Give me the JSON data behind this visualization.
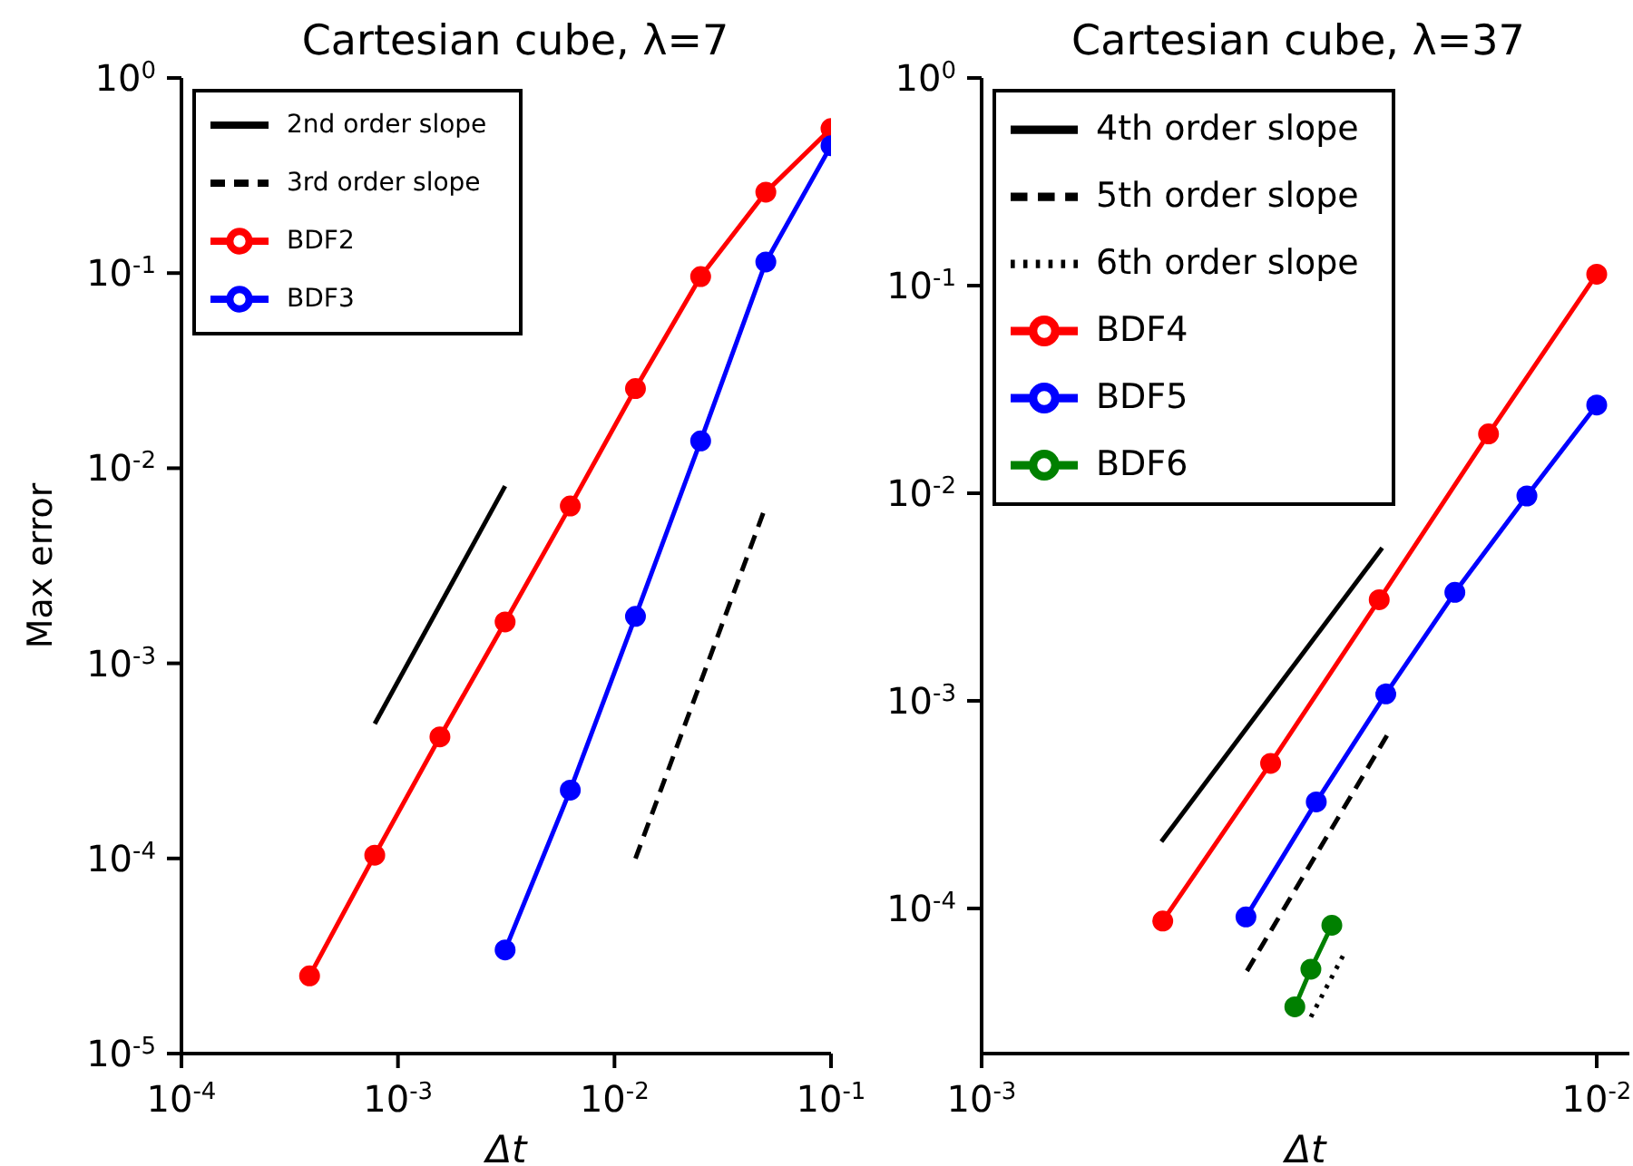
{
  "chart_data": [
    {
      "type": "line",
      "title": "Cartesian cube, λ=7",
      "xlabel": "Δt",
      "ylabel": "Max error",
      "log": "xy",
      "grid": false,
      "legend": "top left",
      "marker": "circle",
      "line_style": "solid",
      "xlim": [
        0.0001,
        0.1
      ],
      "xticks": [
        {
          "value": 0.0001,
          "label": "10$^{-4}$"
        },
        {
          "value": 0.001,
          "label": "10$^{-3}$"
        },
        {
          "value": 0.01,
          "label": "10$^{-2}$"
        },
        {
          "value": 0.1,
          "label": "10$^{-1}$"
        }
      ],
      "ylim": [
        1e-05,
        1
      ],
      "yticks": [
        {
          "value": 1e-05,
          "label": "10$^{-5}$"
        },
        {
          "value": 0.0001,
          "label": "10$^{-4}$"
        },
        {
          "value": 0.001,
          "label": "10$^{-3}$"
        },
        {
          "value": 0.01,
          "label": "10$^{-2}$"
        },
        {
          "value": 0.1,
          "label": "10$^{-1}$"
        },
        {
          "value": 1,
          "label": "10$^{0}$"
        }
      ],
      "series": [
        {
          "name": "BDF2",
          "color": "#ff0000",
          "x": [
            0.000390625,
            0.00078125,
            0.0015625,
            0.003125,
            0.00625,
            0.0125,
            0.025,
            0.05,
            0.1
          ],
          "values": [
            2.5e-05,
            0.000104,
            0.00042,
            0.00163,
            0.0064,
            0.0256,
            0.096,
            0.26,
            0.55
          ]
        },
        {
          "name": "BDF3",
          "color": "#0000ff",
          "x": [
            0.003125,
            0.00625,
            0.0125,
            0.025,
            0.05,
            0.1
          ],
          "values": [
            3.4e-05,
            0.000224,
            0.00174,
            0.0138,
            0.114,
            0.45
          ]
        },
        {
          "name": "2nd order slope",
          "color": "#000000",
          "marker": "none",
          "x": [
            0.00078125,
            0.003125
          ],
          "values": [
            0.00049,
            0.0081
          ]
        },
        {
          "name": "3rd order slope",
          "color": "#000000",
          "marker": "none",
          "line_style": "dashed",
          "x": [
            0.0125,
            0.05
          ],
          "values": [
            0.0001,
            0.0064
          ]
        }
      ]
    },
    {
      "type": "line",
      "title": "Cartesian cube, λ=37",
      "xlabel": "Δt",
      "log": "xy",
      "grid": false,
      "legend": "top left",
      "marker": "circle",
      "line_style": "solid",
      "xlim": [
        0.001,
        0.0113
      ],
      "xticks": [
        {
          "value": 0.001,
          "label": "10$^{-3}$"
        },
        {
          "value": 0.01,
          "label": "10$^{-2}$"
        }
      ],
      "ylim": [
        2e-05,
        1
      ],
      "yticks": [
        {
          "value": 0.0001,
          "label": "10$^{-4}$"
        },
        {
          "value": 0.001,
          "label": "10$^{-3}$"
        },
        {
          "value": 0.01,
          "label": "10$^{-2}$"
        },
        {
          "value": 0.1,
          "label": "10$^{-1}$"
        },
        {
          "value": 1,
          "label": "10$^{0}$"
        }
      ],
      "series": [
        {
          "name": "BDF4",
          "color": "#ff0000",
          "x": [
            0.00197,
            0.00295,
            0.00443,
            0.00667,
            0.01
          ],
          "values": [
            8.7e-05,
            0.0005,
            0.00307,
            0.0193,
            0.1135
          ]
        },
        {
          "name": "BDF5",
          "color": "#0000ff",
          "x": [
            0.00269,
            0.0035,
            0.00454,
            0.00588,
            0.0077,
            0.01
          ],
          "values": [
            9.1e-05,
            0.000326,
            0.00108,
            0.00333,
            0.0097,
            0.0266
          ]
        },
        {
          "name": "BDF6",
          "color": "#008000",
          "x": [
            0.00323,
            0.00343,
            0.00371
          ],
          "values": [
            3.36e-05,
            5.1e-05,
            8.3e-05
          ]
        },
        {
          "name": "4th order slope",
          "color": "#000000",
          "marker": "none",
          "x": [
            0.00196,
            0.00448
          ],
          "values": [
            0.00021,
            0.00546
          ]
        },
        {
          "name": "5th order slope",
          "color": "#000000",
          "marker": "none",
          "line_style": "dashed",
          "x": [
            0.0027,
            0.00456
          ],
          "values": [
            5e-05,
            0.00068
          ]
        },
        {
          "name": "6th order slope",
          "color": "#000000",
          "marker": "none",
          "line_style": "dotted",
          "x": [
            0.00343,
            0.0039
          ],
          "values": [
            3e-05,
            6.2e-05
          ]
        }
      ]
    }
  ]
}
